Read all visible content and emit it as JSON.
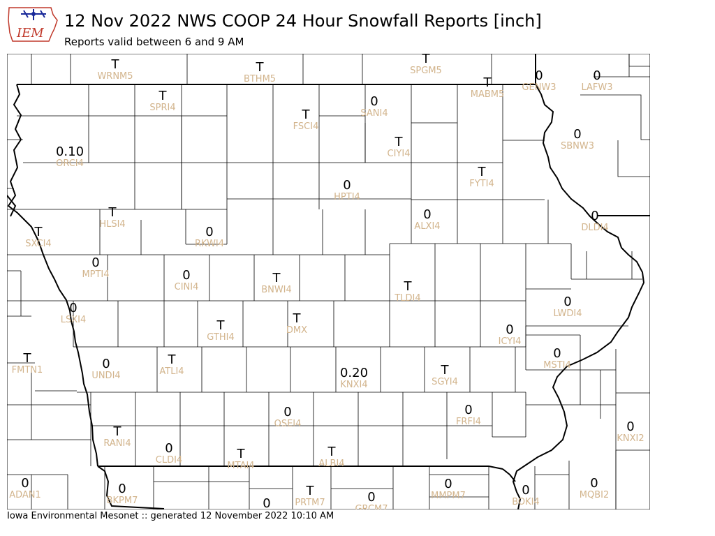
{
  "header": {
    "logo_text": "IEM",
    "title": "12 Nov 2022 NWS COOP 24 Hour Snowfall Reports [inch]",
    "subtitle": "Reports valid between 6 and 9 AM"
  },
  "footer": "Iowa Environmental Mesonet :: generated 12 November 2022 10:10 AM",
  "colors": {
    "value_text": "#000000",
    "station_text": "#d2b48c",
    "state_border": "#000000",
    "county_lines": "#000000"
  },
  "stations": [
    {
      "id": "WRNM5",
      "value": "T"
    },
    {
      "id": "BTHM5",
      "value": "T"
    },
    {
      "id": "SPGM5",
      "value": "T"
    },
    {
      "id": "MABM5",
      "value": "T"
    },
    {
      "id": "GENW3",
      "value": "0"
    },
    {
      "id": "LAFW3",
      "value": "0"
    },
    {
      "id": "SPRI4",
      "value": "T"
    },
    {
      "id": "SANI4",
      "value": "0"
    },
    {
      "id": "FSCI4",
      "value": "T"
    },
    {
      "id": "ORCI4",
      "value": "0.10"
    },
    {
      "id": "CIYI4",
      "value": "T"
    },
    {
      "id": "SBNW3",
      "value": "0"
    },
    {
      "id": "FYTI4",
      "value": "T"
    },
    {
      "id": "HPTI4",
      "value": "0"
    },
    {
      "id": "HLSI4",
      "value": "T"
    },
    {
      "id": "ALXI4",
      "value": "0"
    },
    {
      "id": "DLDI4",
      "value": "0"
    },
    {
      "id": "SXCI4",
      "value": "T"
    },
    {
      "id": "RKWI4",
      "value": "0"
    },
    {
      "id": "MPTI4",
      "value": "0"
    },
    {
      "id": "CINI4",
      "value": "0"
    },
    {
      "id": "BNWI4",
      "value": "T"
    },
    {
      "id": "TLDI4",
      "value": "T"
    },
    {
      "id": "LWDI4",
      "value": "0"
    },
    {
      "id": "LSXI4",
      "value": "0"
    },
    {
      "id": "DMX",
      "value": "T"
    },
    {
      "id": "GTHI4",
      "value": "T"
    },
    {
      "id": "ICYI4",
      "value": "0"
    },
    {
      "id": "FMTN1",
      "value": "T"
    },
    {
      "id": "UNDI4",
      "value": "0"
    },
    {
      "id": "ATLI4",
      "value": "T"
    },
    {
      "id": "KNXI4",
      "value": "0.20"
    },
    {
      "id": "SGYI4",
      "value": "T"
    },
    {
      "id": "MSTI4",
      "value": "0"
    },
    {
      "id": "OSEI4",
      "value": "0"
    },
    {
      "id": "FRFI4",
      "value": "0"
    },
    {
      "id": "KNXI2",
      "value": "0"
    },
    {
      "id": "RANI4",
      "value": "T"
    },
    {
      "id": "CLDI4",
      "value": "0"
    },
    {
      "id": "MTAI4",
      "value": "T"
    },
    {
      "id": "ALBI4",
      "value": "T"
    },
    {
      "id": "ADAN1",
      "value": "0"
    },
    {
      "id": "BKPM7",
      "value": "0"
    },
    {
      "id": "PRTM7",
      "value": "T"
    },
    {
      "id": "GRCM7",
      "value": "0"
    },
    {
      "id": "MMPM7",
      "value": "0"
    },
    {
      "id": "BOKI4",
      "value": "0"
    },
    {
      "id": "MQBI2",
      "value": "0"
    },
    {
      "id": "",
      "value": "0"
    }
  ]
}
